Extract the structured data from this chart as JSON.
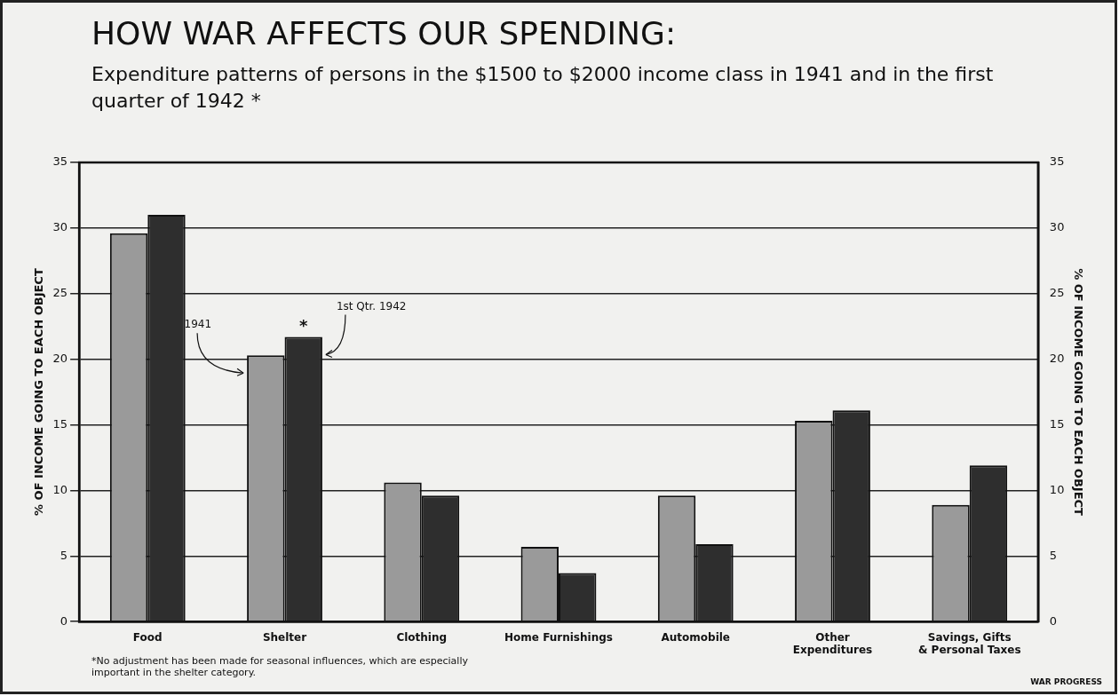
{
  "chart_data": {
    "type": "bar",
    "title": "HOW WAR AFFECTS OUR SPENDING:",
    "subtitle": "Expenditure patterns of persons in the $1500 to $2000 income class in 1941 and in the first quarter of 1942 *",
    "categories": [
      "Food",
      "Shelter",
      "Clothing",
      "Home Furnishings",
      "Automobile",
      "Other Expenditures",
      "Savings, Gifts & Personal Taxes"
    ],
    "series": [
      {
        "name": "1941",
        "color": "#9a9a9a",
        "values": [
          29.6,
          20.3,
          10.6,
          5.7,
          9.6,
          15.3,
          8.9
        ]
      },
      {
        "name": "1st Qtr. 1942",
        "color": "#2e2e2e",
        "values": [
          31.0,
          21.7,
          9.6,
          3.7,
          5.9,
          16.1,
          11.9
        ]
      }
    ],
    "ylabel": "% OF INCOME GOING TO EACH OBJECT",
    "y2label": "% OF INCOME GOING TO EACH OBJECT",
    "ylim": [
      0,
      35
    ],
    "yticks": [
      0,
      5,
      10,
      15,
      20,
      25,
      30,
      35
    ],
    "y2lim": [
      0,
      35
    ],
    "y2ticks": [
      0,
      5,
      10,
      15,
      20,
      25,
      30,
      35
    ],
    "grid": "y",
    "annotations": [
      {
        "text": "*",
        "x": "Shelter",
        "y": 21.7
      },
      "*No adjustment has been made for seasonal influences, which are especially important in the shelter category.",
      "WAR PROGRESS"
    ]
  }
}
